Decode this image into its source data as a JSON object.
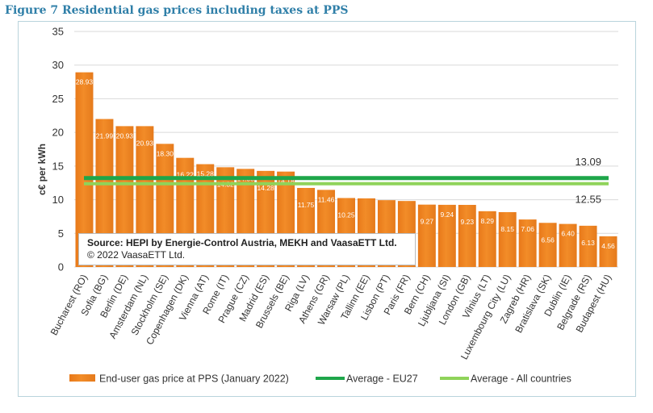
{
  "figure_title": "Figure 7 Residential gas prices including taxes at PPS",
  "source": {
    "line1": "Source: HEPI by Energie-Control Austria, MEKH and VaasaETT Ltd.",
    "line2": "© 2022 VaasaETT Ltd."
  },
  "chart_data": {
    "type": "bar",
    "title": "",
    "ylabel": "c€ per kWh",
    "xlabel": "",
    "ylim": [
      0,
      35
    ],
    "yticks": [
      0,
      5,
      10,
      15,
      20,
      25,
      30,
      35
    ],
    "grid": true,
    "categories": [
      "Bucharest (RO)",
      "Sofia (BG)",
      "Berlin (DE)",
      "Amsterdam (NL)",
      "Stockholm (SE)",
      "Copenhagen (DK)",
      "Vienna (AT)",
      "Rome (IT)",
      "Prague (CZ)",
      "Madrid (ES)",
      "Brussels (BE)",
      "Riga (LV)",
      "Athens (GR)",
      "Warsaw (PL)",
      "Tallinn (EE)",
      "Lisbon (PT)",
      "Paris (FR)",
      "Bern (CH)",
      "Ljubljana (SI)",
      "London (GB)",
      "Vilnius (LT)",
      "Luxembourg City (LU)",
      "Zagreb (HR)",
      "Bratislava (SK)",
      "Dublin (IE)",
      "Belgrade (RS)",
      "Budapest (HU)"
    ],
    "series": [
      {
        "name": "End-user gas price at PPS (January 2022)",
        "values": [
          28.93,
          21.99,
          20.93,
          20.93,
          18.3,
          16.22,
          15.28,
          14.82,
          14.58,
          14.28,
          14.18,
          11.75,
          11.46,
          10.25,
          10.2,
          9.93,
          9.81,
          9.27,
          9.24,
          9.23,
          8.29,
          8.15,
          7.06,
          6.56,
          6.4,
          6.13,
          4.56
        ],
        "labels": [
          "28.93",
          "21.99",
          "20.93",
          "20.93",
          "18.30",
          "16.22",
          "15.28",
          "14.82",
          "14.58",
          "14.28",
          "14.18",
          "11.75",
          "11.46",
          "10.25",
          "",
          "",
          "",
          "9.27",
          "9.24",
          "9.23",
          "8.29",
          "8.15",
          "7.06",
          "6.56",
          "6.40",
          "6.13",
          "4.56"
        ],
        "color": "#f28c28"
      }
    ],
    "reference_lines": [
      {
        "name": "Average - EU27",
        "value": 13.09,
        "label": "13.09",
        "color": "#1ea64a"
      },
      {
        "name": "Average - All countries",
        "value": 12.55,
        "label": "12.55",
        "color": "#8fd35a"
      }
    ],
    "legend_position": "bottom"
  }
}
